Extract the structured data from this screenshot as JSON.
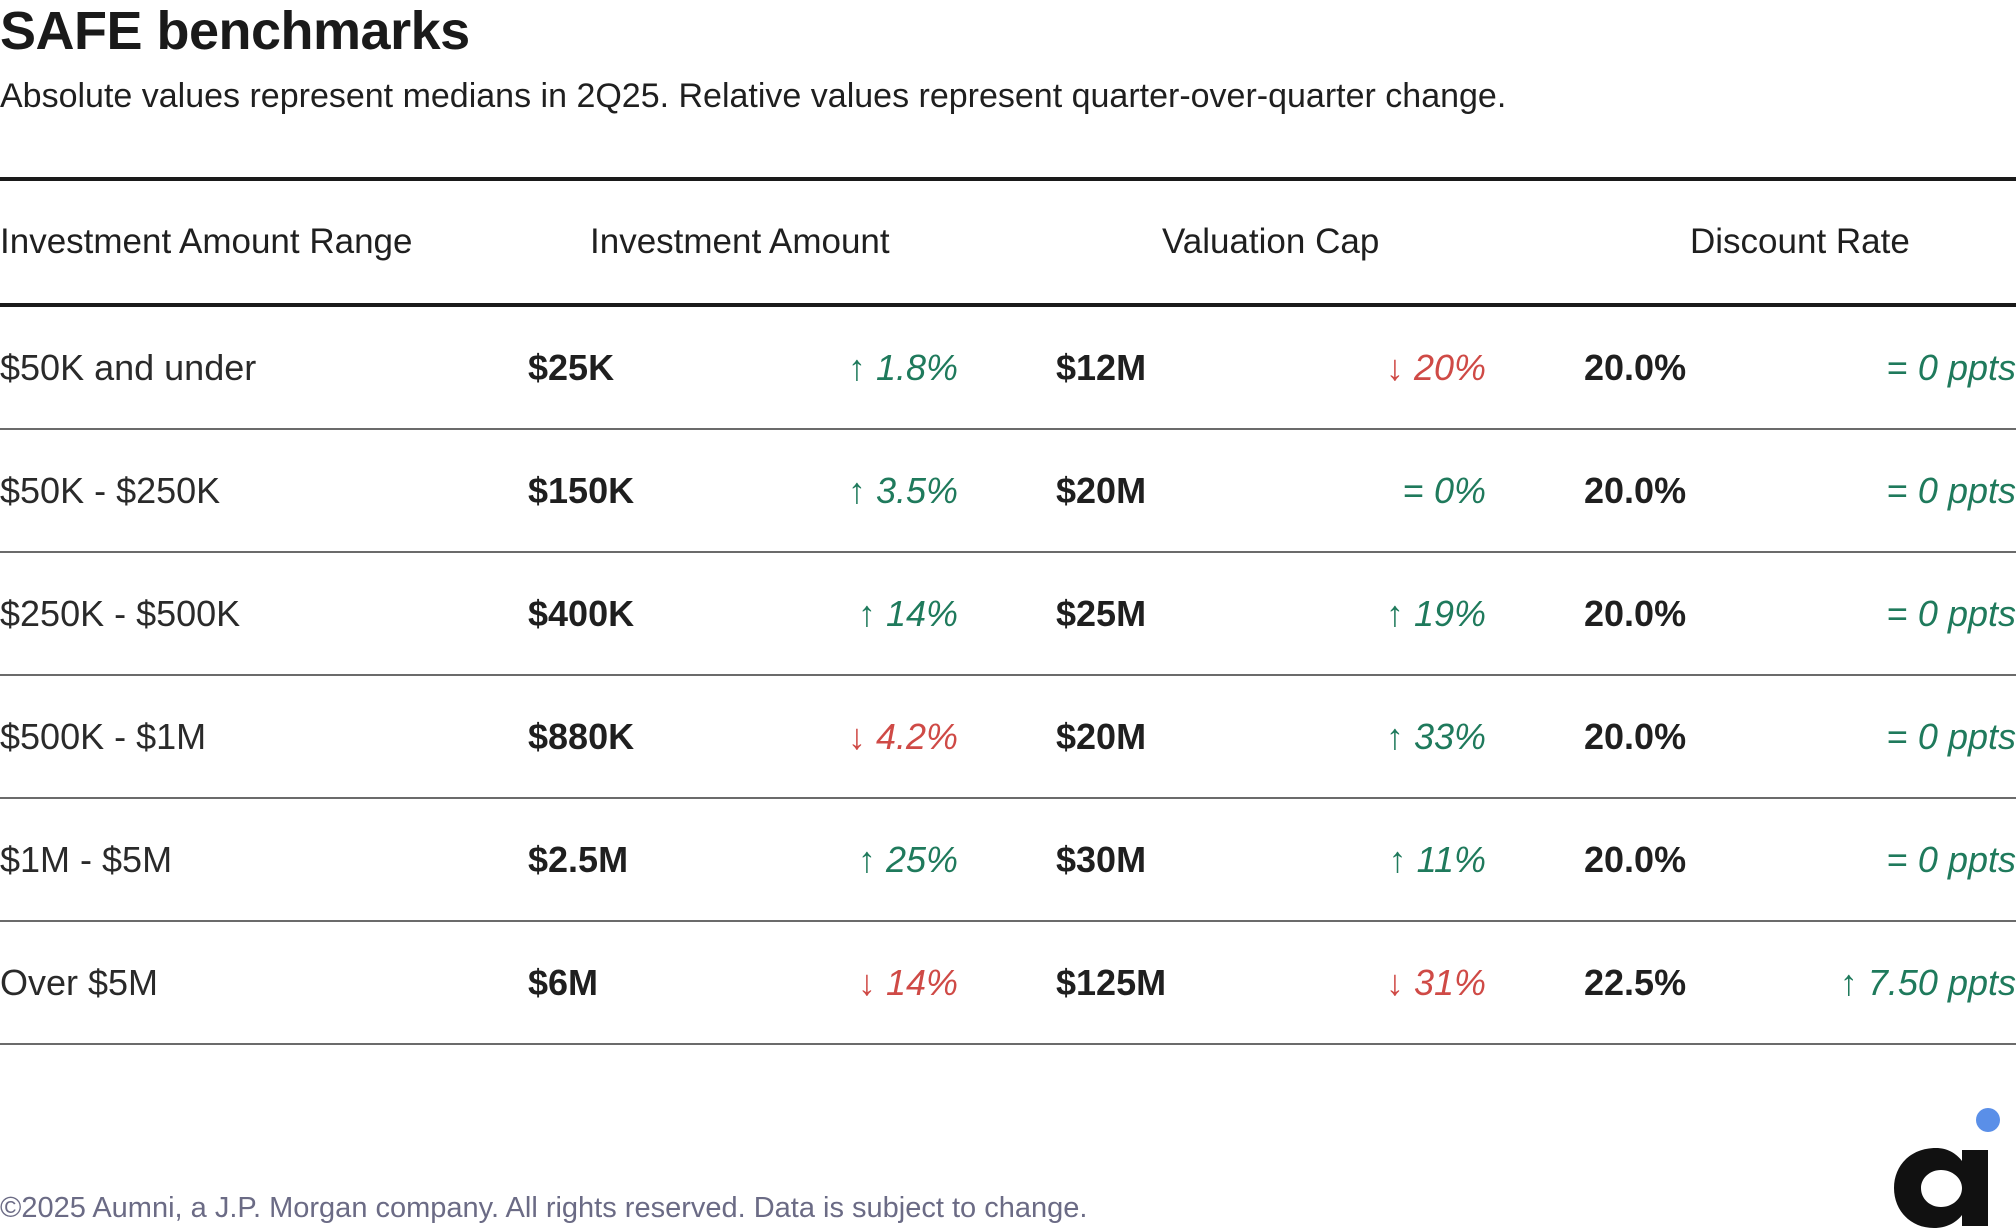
{
  "title": "SAFE benchmarks",
  "subtitle": "Absolute values represent medians in 2Q25. Relative values represent quarter-over-quarter change.",
  "columns": {
    "range": "Investment Amount Range",
    "investment_amount": "Investment Amount",
    "valuation_cap": "Valuation Cap",
    "discount_rate": "Discount Rate"
  },
  "rows": [
    {
      "range": "$50K and under",
      "ia": "$25K",
      "ia_change": "1.8%",
      "ia_dir": "up",
      "vc": "$12M",
      "vc_change": "20%",
      "vc_dir": "down",
      "dr": "20.0%",
      "dr_change": "0 ppts",
      "dr_dir": "eq"
    },
    {
      "range": "$50K - $250K",
      "ia": "$150K",
      "ia_change": "3.5%",
      "ia_dir": "up",
      "vc": "$20M",
      "vc_change": "0%",
      "vc_dir": "eq",
      "dr": "20.0%",
      "dr_change": "0 ppts",
      "dr_dir": "eq"
    },
    {
      "range": "$250K - $500K",
      "ia": "$400K",
      "ia_change": "14%",
      "ia_dir": "up",
      "vc": "$25M",
      "vc_change": "19%",
      "vc_dir": "up",
      "dr": "20.0%",
      "dr_change": "0 ppts",
      "dr_dir": "eq"
    },
    {
      "range": "$500K - $1M",
      "ia": "$880K",
      "ia_change": "4.2%",
      "ia_dir": "down",
      "vc": "$20M",
      "vc_change": "33%",
      "vc_dir": "up",
      "dr": "20.0%",
      "dr_change": "0 ppts",
      "dr_dir": "eq"
    },
    {
      "range": "$1M - $5M",
      "ia": "$2.5M",
      "ia_change": "25%",
      "ia_dir": "up",
      "vc": "$30M",
      "vc_change": "11%",
      "vc_dir": "up",
      "dr": "20.0%",
      "dr_change": "0 ppts",
      "dr_dir": "eq"
    },
    {
      "range": "Over $5M",
      "ia": "$6M",
      "ia_change": "14%",
      "ia_dir": "down",
      "vc": "$125M",
      "vc_change": "31%",
      "vc_dir": "down",
      "dr": "22.5%",
      "dr_change": "7.50 ppts",
      "dr_dir": "up"
    }
  ],
  "symbols": {
    "up": "↑",
    "down": "↓",
    "eq": "="
  },
  "colors": {
    "up": "#1f7a5c",
    "eq": "#1f7a5c",
    "down": "#cf4a46",
    "logo_dot": "#5a8fe8",
    "logo_letter": "#111111"
  },
  "footer": "©2025 Aumni, a J.P. Morgan company. All rights reserved. Data is subject to change.",
  "logo": {
    "letter": "a",
    "icon": "aumni-logo-icon"
  }
}
